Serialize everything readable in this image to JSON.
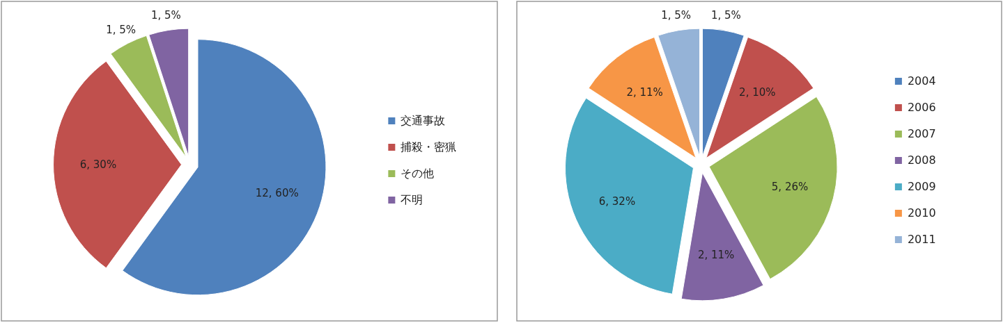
{
  "chart_data": [
    {
      "type": "pie",
      "categories": [
        "交通事故",
        "捕殺・密猟",
        "その他",
        "不明"
      ],
      "values": [
        12,
        6,
        1,
        1
      ],
      "colors": [
        "#4f81bd",
        "#c0504d",
        "#9bbb59",
        "#8064a2"
      ],
      "value_labels": [
        "12, 60%",
        "6, 30%",
        "1, 5%",
        "1, 5%"
      ],
      "legend": "right"
    },
    {
      "type": "pie",
      "categories": [
        "2004",
        "2006",
        "2007",
        "2008",
        "2009",
        "2010",
        "2011"
      ],
      "values": [
        1,
        2,
        5,
        2,
        6,
        2,
        1
      ],
      "colors": [
        "#4f81bd",
        "#c0504d",
        "#9bbb59",
        "#8064a2",
        "#4bacc6",
        "#f79646",
        "#95b3d7"
      ],
      "value_labels": [
        "1, 5%",
        "2, 10%",
        "5, 26%",
        "2, 11%",
        "6, 32%",
        "2, 11%",
        "1, 5%"
      ],
      "legend": "right"
    }
  ]
}
